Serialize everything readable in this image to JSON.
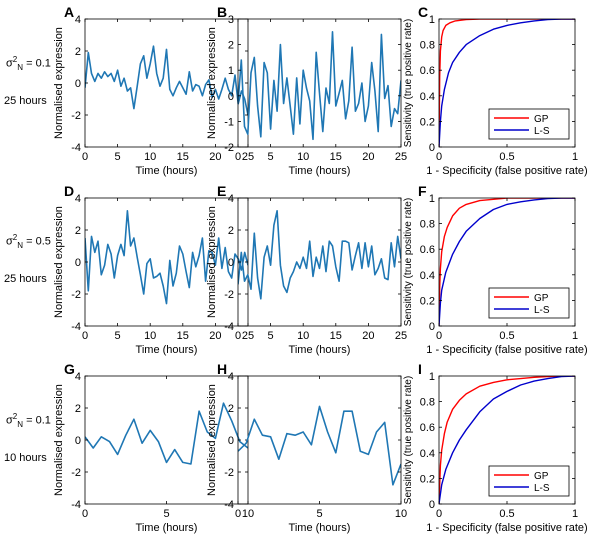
{
  "row_labels": [
    {
      "sigma_symbol": "σ",
      "sub": "N",
      "sup": "2",
      "value": "= 0.1",
      "duration": "25 hours"
    },
    {
      "sigma_symbol": "σ",
      "sub": "N",
      "sup": "2",
      "value": "= 0.5",
      "duration": "25 hours"
    },
    {
      "sigma_symbol": "σ",
      "sub": "N",
      "sup": "2",
      "value": "= 0.1",
      "duration": "10 hours"
    }
  ],
  "colors": {
    "series_blue": "#1f77b4",
    "gp": "#ff0000",
    "ls": "#0000cc"
  },
  "chart_data": [
    {
      "panel": "A",
      "type": "line",
      "xlabel": "Time (hours)",
      "ylabel": "Normalised expression",
      "xlim": [
        0,
        25
      ],
      "ylim": [
        -4,
        4
      ],
      "xticks": [
        0,
        5,
        10,
        15,
        20,
        25
      ],
      "yticks": [
        -4,
        -2,
        0,
        2,
        4
      ],
      "series": [
        {
          "x": [
            0,
            0.5,
            1,
            1.5,
            2,
            2.5,
            3,
            3.5,
            4,
            4.5,
            5,
            5.5,
            6,
            6.5,
            7,
            7.5,
            8,
            8.5,
            9,
            9.5,
            10,
            10.5,
            11,
            11.5,
            12,
            12.5,
            13,
            13.5,
            14,
            14.5,
            15,
            15.5,
            16,
            16.5,
            17,
            17.5,
            18,
            18.5,
            19,
            19.5,
            20,
            20.5,
            21,
            21.5,
            22,
            22.5,
            23,
            23.5,
            24,
            24.5,
            25
          ],
          "values": [
            -0.3,
            1.9,
            0.6,
            0.1,
            0.6,
            0.3,
            0.7,
            0.4,
            0.6,
            0.1,
            0.8,
            -0.2,
            0.3,
            -0.5,
            -0.3,
            -1.6,
            -0.2,
            1.2,
            1.7,
            0.3,
            1.2,
            2.3,
            0.6,
            -0.2,
            0.3,
            2.1,
            -0.4,
            -0.8,
            -0.3,
            0.1,
            -0.3,
            -0.7,
            0.7,
            -0.5,
            -0.1,
            -0.2,
            -0.8,
            -0.1,
            0.2,
            -0.9,
            -0.4,
            -1.0,
            -0.4,
            0.3,
            -0.4,
            -0.8,
            0.5,
            -1.3,
            -0.5,
            -1.0,
            -2.0
          ]
        }
      ]
    },
    {
      "panel": "B",
      "type": "line",
      "xlabel": "Time (hours)",
      "ylabel": "Normalised expression",
      "xlim": [
        0,
        25
      ],
      "ylim": [
        -2,
        3
      ],
      "xticks": [
        0,
        5,
        10,
        15,
        20,
        25
      ],
      "yticks": [
        -2,
        -1,
        0,
        1,
        2,
        3
      ],
      "series": [
        {
          "x": [
            0,
            0.5,
            1,
            1.5,
            2,
            2.5,
            3,
            3.5,
            4,
            4.5,
            5,
            5.5,
            6,
            6.5,
            7,
            7.5,
            8,
            8.5,
            9,
            9.5,
            10,
            10.5,
            11,
            11.5,
            12,
            12.5,
            13,
            13.5,
            14,
            14.5,
            15,
            15.5,
            16,
            16.5,
            17,
            17.5,
            18,
            18.5,
            19,
            19.5,
            20,
            20.5,
            21,
            21.5,
            22,
            22.5,
            23,
            23.5,
            24,
            24.5,
            25
          ],
          "values": [
            -0.3,
            1.4,
            -1.2,
            -1.5,
            0.9,
            1.5,
            -0.4,
            -1.6,
            1.3,
            0.9,
            -1.3,
            0.6,
            -0.6,
            2.0,
            -0.3,
            0.7,
            -0.4,
            -1.5,
            0.7,
            -1.1,
            1.0,
            0.3,
            -0.2,
            -1.7,
            1.7,
            0.1,
            -1.4,
            0.3,
            -0.3,
            2.5,
            -0.4,
            0.1,
            0.6,
            -0.9,
            -0.2,
            1.9,
            -0.6,
            -0.3,
            0.5,
            -1.0,
            -0.4,
            1.3,
            0.2,
            -1.4,
            2.4,
            -0.1,
            0.4,
            -1.2,
            -0.5,
            -0.7,
            0.6
          ]
        }
      ]
    },
    {
      "panel": "C",
      "type": "line",
      "xlabel": "1 - Specificity (false positive rate)",
      "ylabel": "Sensitivity (true positive rate)",
      "xlim": [
        0,
        1
      ],
      "ylim": [
        0,
        1
      ],
      "xticks": [
        0,
        0.5,
        1
      ],
      "yticks": [
        0,
        0.2,
        0.4,
        0.6,
        0.8,
        1
      ],
      "legend": "bottom-right",
      "series": [
        {
          "name": "GP",
          "x": [
            0,
            0.005,
            0.01,
            0.02,
            0.03,
            0.05,
            0.08,
            0.12,
            0.2,
            0.3,
            0.5,
            1
          ],
          "values": [
            0,
            0.55,
            0.75,
            0.86,
            0.91,
            0.95,
            0.97,
            0.985,
            0.995,
            1,
            1,
            1
          ]
        },
        {
          "name": "L-S",
          "x": [
            0,
            0.01,
            0.02,
            0.04,
            0.07,
            0.1,
            0.15,
            0.2,
            0.3,
            0.4,
            0.5,
            0.6,
            0.7,
            0.8,
            0.9,
            1
          ],
          "values": [
            0,
            0.2,
            0.32,
            0.45,
            0.58,
            0.66,
            0.74,
            0.8,
            0.87,
            0.92,
            0.95,
            0.97,
            0.985,
            0.995,
            1,
            1
          ]
        }
      ]
    },
    {
      "panel": "D",
      "type": "line",
      "xlabel": "Time (hours)",
      "ylabel": "Normalised expression",
      "xlim": [
        0,
        25
      ],
      "ylim": [
        -4,
        4
      ],
      "xticks": [
        0,
        5,
        10,
        15,
        20,
        25
      ],
      "yticks": [
        -4,
        -2,
        0,
        2,
        4
      ],
      "series": [
        {
          "x": [
            0,
            0.5,
            1,
            1.5,
            2,
            2.5,
            3,
            3.5,
            4,
            4.5,
            5,
            5.5,
            6,
            6.5,
            7,
            7.5,
            8,
            8.5,
            9,
            9.5,
            10,
            10.5,
            11,
            11.5,
            12,
            12.5,
            13,
            13.5,
            14,
            14.5,
            15,
            15.5,
            16,
            16.5,
            17,
            17.5,
            18,
            18.5,
            19,
            19.5,
            20,
            20.5,
            21,
            21.5,
            22,
            22.5,
            23,
            23.5,
            24,
            24.5,
            25
          ],
          "values": [
            1.5,
            -1.8,
            1.6,
            0.6,
            1.3,
            -0.8,
            -0.2,
            1.1,
            0.5,
            -1.0,
            0.4,
            1.1,
            0.4,
            3.2,
            1.0,
            1.5,
            0.3,
            -0.8,
            -2.0,
            -0.1,
            0.2,
            -1.0,
            -0.9,
            -0.7,
            -1.5,
            -2.6,
            0.1,
            -1.5,
            -0.7,
            1.0,
            0.5,
            -0.6,
            -1.6,
            0.6,
            -0.3,
            0.4,
            1.5,
            -1.2,
            0.7,
            0.6,
            -0.2,
            1.5,
            -0.4,
            0.9,
            -0.6,
            -1.0,
            0.5,
            0.2,
            -0.5,
            0.6,
            -0.2
          ]
        }
      ]
    },
    {
      "panel": "E",
      "type": "line",
      "xlabel": "Time (hours)",
      "ylabel": "Normalised expression",
      "xlim": [
        0,
        25
      ],
      "ylim": [
        -4,
        4
      ],
      "xticks": [
        0,
        5,
        10,
        15,
        20,
        25
      ],
      "yticks": [
        -4,
        -2,
        0,
        2,
        4
      ],
      "series": [
        {
          "x": [
            0,
            0.5,
            1,
            1.5,
            2,
            2.5,
            3,
            3.5,
            4,
            4.5,
            5,
            5.5,
            6,
            6.5,
            7,
            7.5,
            8,
            8.5,
            9,
            9.5,
            10,
            10.5,
            11,
            11.5,
            12,
            12.5,
            13,
            13.5,
            14,
            14.5,
            15,
            15.5,
            16,
            16.5,
            17,
            17.5,
            18,
            18.5,
            19,
            19.5,
            20,
            20.5,
            21,
            21.5,
            22,
            22.5,
            23,
            23.5,
            24,
            24.5,
            25
          ],
          "values": [
            -1.4,
            0.6,
            -1.2,
            -0.8,
            -1.7,
            1.8,
            -1.0,
            -2.3,
            0.3,
            1.0,
            -0.2,
            2.3,
            3.2,
            -0.2,
            -1.5,
            -1.9,
            -1.0,
            -0.6,
            0.0,
            -0.4,
            0.3,
            -0.4,
            1.3,
            -0.9,
            0.3,
            -0.4,
            1.0,
            -0.6,
            1.3,
            1.0,
            -0.3,
            -1.2,
            1.3,
            1.3,
            1.2,
            -0.5,
            0.4,
            1.2,
            -0.4,
            1.2,
            -0.3,
            1.0,
            -0.8,
            -0.4,
            0.2,
            -1.0,
            -1.1,
            1.2,
            -0.3,
            1.6,
            0.2
          ]
        }
      ]
    },
    {
      "panel": "F",
      "type": "line",
      "xlabel": "1 - Specificity (false positive rate)",
      "ylabel": "Sensitivity (true positive rate)",
      "xlim": [
        0,
        1
      ],
      "ylim": [
        0,
        1
      ],
      "xticks": [
        0,
        0.5,
        1
      ],
      "yticks": [
        0,
        0.2,
        0.4,
        0.6,
        0.8,
        1
      ],
      "legend": "bottom-right",
      "series": [
        {
          "name": "GP",
          "x": [
            0,
            0.005,
            0.01,
            0.02,
            0.04,
            0.06,
            0.1,
            0.15,
            0.2,
            0.3,
            0.4,
            0.5,
            0.6,
            0.8,
            1
          ],
          "values": [
            0,
            0.3,
            0.45,
            0.58,
            0.7,
            0.77,
            0.86,
            0.92,
            0.95,
            0.98,
            0.99,
            1,
            1,
            1,
            1
          ]
        },
        {
          "name": "L-S",
          "x": [
            0,
            0.01,
            0.02,
            0.05,
            0.1,
            0.15,
            0.2,
            0.3,
            0.4,
            0.5,
            0.6,
            0.7,
            0.8,
            0.9,
            1
          ],
          "values": [
            0,
            0.18,
            0.28,
            0.42,
            0.56,
            0.66,
            0.74,
            0.84,
            0.91,
            0.95,
            0.97,
            0.985,
            0.995,
            1,
            1
          ]
        }
      ]
    },
    {
      "panel": "G",
      "type": "line",
      "xlabel": "Time (hours)",
      "ylabel": "Normalised expression",
      "xlim": [
        0,
        10
      ],
      "ylim": [
        -4,
        4
      ],
      "xticks": [
        0,
        5,
        10
      ],
      "yticks": [
        -4,
        -2,
        0,
        2,
        4
      ],
      "series": [
        {
          "x": [
            0,
            0.5,
            1,
            1.5,
            2,
            2.5,
            3,
            3.5,
            4,
            4.5,
            5,
            5.5,
            6,
            6.5,
            7,
            7.5,
            8,
            8.5,
            9,
            9.5,
            10
          ],
          "values": [
            0.2,
            -0.5,
            0.2,
            -0.1,
            -0.9,
            0.3,
            1.3,
            -0.2,
            0.6,
            -0.1,
            -1.4,
            -0.6,
            -1.4,
            -1.5,
            1.8,
            0.5,
            0.1,
            2.3,
            1.2,
            -0.1,
            -0.5
          ]
        }
      ]
    },
    {
      "panel": "H",
      "type": "line",
      "xlabel": "Time (hours)",
      "ylabel": "Normalised expression",
      "xlim": [
        0,
        10
      ],
      "ylim": [
        -4,
        4
      ],
      "xticks": [
        0,
        5,
        10
      ],
      "yticks": [
        -4,
        -2,
        0,
        2,
        4
      ],
      "series": [
        {
          "x": [
            0,
            0.5,
            1,
            1.5,
            2,
            2.5,
            3,
            3.5,
            4,
            4.5,
            5,
            5.5,
            6,
            6.5,
            7,
            7.5,
            8,
            8.5,
            9,
            9.5,
            10
          ],
          "values": [
            -0.7,
            -0.2,
            1.3,
            0.3,
            0.2,
            -1.2,
            0.4,
            0.3,
            0.5,
            -0.3,
            2.1,
            0.5,
            -0.8,
            1.8,
            1.8,
            -0.7,
            -0.9,
            0.5,
            1.1,
            -2.8,
            -1.5
          ]
        }
      ]
    },
    {
      "panel": "I",
      "type": "line",
      "xlabel": "1 - Specificity (false positive rate)",
      "ylabel": "Sensitivity (true positive rate)",
      "xlim": [
        0,
        1
      ],
      "ylim": [
        0,
        1
      ],
      "xticks": [
        0,
        0.5,
        1
      ],
      "yticks": [
        0,
        0.2,
        0.4,
        0.6,
        0.8,
        1
      ],
      "legend": "bottom-right",
      "series": [
        {
          "name": "GP",
          "x": [
            0,
            0.01,
            0.02,
            0.04,
            0.06,
            0.1,
            0.15,
            0.2,
            0.3,
            0.4,
            0.5,
            0.6,
            0.7,
            0.8,
            0.9,
            1
          ],
          "values": [
            0,
            0.3,
            0.42,
            0.55,
            0.64,
            0.74,
            0.81,
            0.86,
            0.92,
            0.95,
            0.97,
            0.98,
            0.99,
            0.995,
            1,
            1
          ]
        },
        {
          "name": "L-S",
          "x": [
            0,
            0.02,
            0.05,
            0.1,
            0.15,
            0.2,
            0.3,
            0.4,
            0.5,
            0.6,
            0.7,
            0.8,
            0.9,
            1
          ],
          "values": [
            0,
            0.15,
            0.27,
            0.4,
            0.5,
            0.58,
            0.72,
            0.82,
            0.88,
            0.93,
            0.96,
            0.98,
            0.995,
            1
          ]
        }
      ]
    }
  ]
}
